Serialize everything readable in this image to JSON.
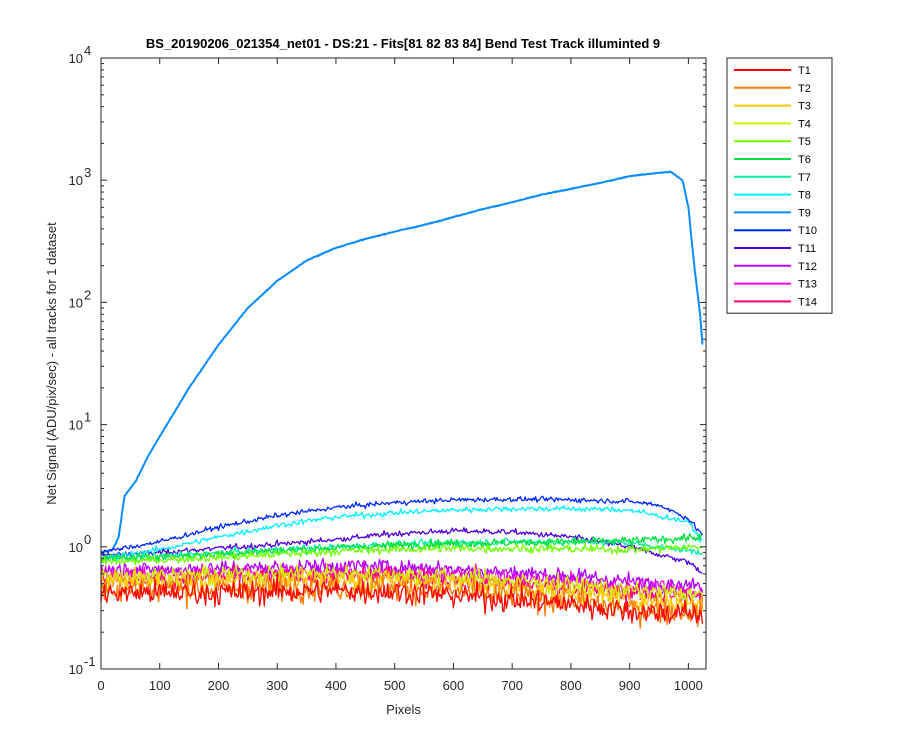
{
  "chart_data": {
    "type": "line",
    "title": "BS_20190206_021354_net01 - DS:21 - Fits[81  82  83  84]   Bend Test        Track illuminted 9",
    "xlabel": "Pixels",
    "ylabel": "Net Signal (ADU/pix/sec) - all tracks for 1 dataset",
    "xlim": [
      0,
      1030
    ],
    "ylim": [
      0.1,
      10000
    ],
    "yscale": "log",
    "xticks": [
      "0",
      "100",
      "200",
      "300",
      "400",
      "500",
      "600",
      "700",
      "800",
      "900",
      "1000"
    ],
    "ytick_bases": [
      "10",
      "10",
      "10",
      "10",
      "10",
      "10"
    ],
    "ytick_exponents": [
      "-1",
      "0",
      "1",
      "2",
      "3",
      "4"
    ],
    "grid": false,
    "legend_position": "outside-top-right",
    "series": [
      {
        "name": "T1",
        "color": "#ff0000",
        "noise": 0.3,
        "x": [
          0,
          100,
          200,
          300,
          400,
          500,
          600,
          700,
          800,
          900,
          1024
        ],
        "y": [
          0.42,
          0.42,
          0.42,
          0.43,
          0.44,
          0.43,
          0.4,
          0.37,
          0.34,
          0.3,
          0.28
        ]
      },
      {
        "name": "T2",
        "color": "#ff7a00",
        "noise": 0.3,
        "x": [
          0,
          100,
          200,
          300,
          400,
          500,
          600,
          700,
          800,
          900,
          1024
        ],
        "y": [
          0.45,
          0.45,
          0.45,
          0.46,
          0.47,
          0.46,
          0.43,
          0.39,
          0.36,
          0.31,
          0.29
        ]
      },
      {
        "name": "T3",
        "color": "#ffc800",
        "noise": 0.25,
        "x": [
          0,
          100,
          200,
          300,
          400,
          500,
          600,
          700,
          800,
          900,
          1024
        ],
        "y": [
          0.52,
          0.52,
          0.52,
          0.53,
          0.54,
          0.53,
          0.5,
          0.46,
          0.42,
          0.37,
          0.34
        ]
      },
      {
        "name": "T4",
        "color": "#d0f000",
        "noise": 0.22,
        "x": [
          0,
          100,
          200,
          300,
          400,
          500,
          600,
          700,
          800,
          900,
          1024
        ],
        "y": [
          0.58,
          0.58,
          0.59,
          0.6,
          0.61,
          0.6,
          0.57,
          0.53,
          0.49,
          0.44,
          0.4
        ]
      },
      {
        "name": "T5",
        "color": "#70ff00",
        "noise": 0.1,
        "x": [
          0,
          100,
          200,
          300,
          400,
          500,
          600,
          700,
          800,
          900,
          1024
        ],
        "y": [
          0.75,
          0.78,
          0.82,
          0.87,
          0.92,
          0.95,
          0.97,
          0.97,
          0.96,
          0.95,
          1.0
        ]
      },
      {
        "name": "T6",
        "color": "#00e040",
        "noise": 0.1,
        "x": [
          0,
          100,
          200,
          300,
          400,
          500,
          600,
          700,
          800,
          900,
          1024
        ],
        "y": [
          0.8,
          0.83,
          0.87,
          0.92,
          0.98,
          1.03,
          1.07,
          1.08,
          1.1,
          1.12,
          1.2
        ]
      },
      {
        "name": "T7",
        "color": "#00f0a0",
        "noise": 0.08,
        "x": [
          0,
          100,
          200,
          300,
          400,
          500,
          600,
          700,
          800,
          900,
          1024
        ],
        "y": [
          0.8,
          0.84,
          0.89,
          0.95,
          1.0,
          1.05,
          1.08,
          1.1,
          1.1,
          1.08,
          0.9
        ]
      },
      {
        "name": "T8",
        "color": "#00f0ff",
        "noise": 0.07,
        "x": [
          0,
          100,
          200,
          300,
          400,
          500,
          600,
          700,
          800,
          900,
          1000,
          1024
        ],
        "y": [
          0.8,
          0.95,
          1.2,
          1.5,
          1.75,
          1.9,
          2.0,
          2.05,
          2.05,
          2.0,
          1.6,
          1.1
        ]
      },
      {
        "name": "T9",
        "color": "#0a8cff",
        "noise": 0.01,
        "x": [
          0,
          20,
          30,
          40,
          60,
          80,
          100,
          150,
          200,
          250,
          300,
          350,
          400,
          450,
          500,
          550,
          600,
          650,
          700,
          750,
          800,
          850,
          900,
          950,
          970,
          990,
          1000,
          1010,
          1020,
          1024
        ],
        "y": [
          0.9,
          0.95,
          1.2,
          2.6,
          3.5,
          5.5,
          8.0,
          20,
          45,
          90,
          150,
          220,
          280,
          330,
          380,
          430,
          500,
          580,
          660,
          760,
          850,
          950,
          1080,
          1150,
          1170,
          1000,
          600,
          200,
          80,
          45
        ]
      },
      {
        "name": "T10",
        "color": "#0028ff",
        "noise": 0.06,
        "x": [
          0,
          100,
          200,
          300,
          400,
          500,
          600,
          700,
          800,
          900,
          950,
          1000,
          1024
        ],
        "y": [
          0.9,
          1.1,
          1.45,
          1.8,
          2.1,
          2.3,
          2.42,
          2.45,
          2.43,
          2.35,
          2.2,
          1.7,
          1.25
        ]
      },
      {
        "name": "T11",
        "color": "#5000e0",
        "noise": 0.07,
        "x": [
          0,
          100,
          200,
          300,
          400,
          500,
          600,
          700,
          800,
          900,
          1000,
          1024
        ],
        "y": [
          0.85,
          0.9,
          0.97,
          1.05,
          1.15,
          1.28,
          1.35,
          1.32,
          1.2,
          1.0,
          0.75,
          0.62
        ]
      },
      {
        "name": "T12",
        "color": "#b400ff",
        "noise": 0.18,
        "x": [
          0,
          100,
          200,
          300,
          400,
          500,
          600,
          700,
          800,
          900,
          1024
        ],
        "y": [
          0.65,
          0.65,
          0.66,
          0.68,
          0.7,
          0.69,
          0.66,
          0.62,
          0.58,
          0.52,
          0.48
        ]
      },
      {
        "name": "T13",
        "color": "#ff00e0",
        "noise": 0.2,
        "x": [
          0,
          100,
          200,
          300,
          400,
          500,
          600,
          700,
          800,
          900,
          1024
        ],
        "y": [
          0.6,
          0.6,
          0.61,
          0.62,
          0.63,
          0.62,
          0.6,
          0.56,
          0.52,
          0.47,
          0.43
        ]
      },
      {
        "name": "T14",
        "color": "#ff0070",
        "noise": 0.22,
        "x": [
          0,
          100,
          200,
          300,
          400,
          500,
          600,
          700,
          800,
          900,
          1024
        ],
        "y": [
          0.55,
          0.55,
          0.56,
          0.57,
          0.58,
          0.57,
          0.54,
          0.5,
          0.46,
          0.42,
          0.38
        ]
      }
    ]
  }
}
